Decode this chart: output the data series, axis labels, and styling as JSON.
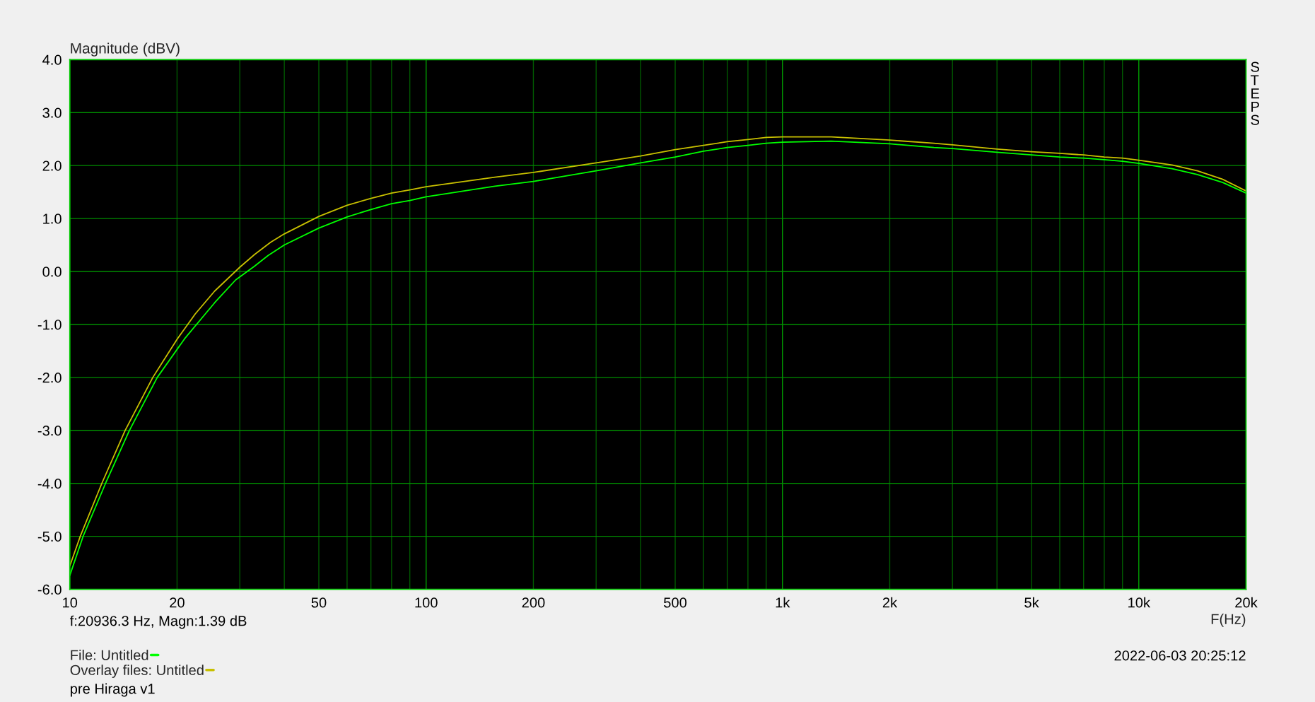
{
  "chart_data": {
    "type": "line",
    "ylabel": "Magnitude (dBV)",
    "xlabel": "F(Hz)",
    "log": "x",
    "xlim": [
      10,
      20000
    ],
    "ylim": [
      -6,
      4
    ],
    "xticks": [
      10,
      20,
      {
        "value": 30,
        "label": null
      },
      {
        "value": 40,
        "label": null
      },
      50,
      {
        "value": 60,
        "label": null
      },
      {
        "value": 70,
        "label": null
      },
      {
        "value": 80,
        "label": null
      },
      {
        "value": 90,
        "label": null
      },
      100,
      200,
      {
        "value": 300,
        "label": null
      },
      {
        "value": 400,
        "label": null
      },
      500,
      {
        "value": 600,
        "label": null
      },
      {
        "value": 700,
        "label": null
      },
      {
        "value": 800,
        "label": null
      },
      {
        "value": 900,
        "label": null
      },
      {
        "value": 1000,
        "label": "1k"
      },
      {
        "value": 2000,
        "label": "2k"
      },
      {
        "value": 3000,
        "label": null
      },
      {
        "value": 4000,
        "label": null
      },
      {
        "value": 5000,
        "label": "5k"
      },
      {
        "value": 6000,
        "label": null
      },
      {
        "value": 7000,
        "label": null
      },
      {
        "value": 8000,
        "label": null
      },
      {
        "value": 9000,
        "label": null
      },
      {
        "value": 10000,
        "label": "10k"
      },
      {
        "value": 20000,
        "label": "20k"
      }
    ],
    "yticks": [
      {
        "value": 4,
        "label": "4.0"
      },
      {
        "value": 3,
        "label": "3.0"
      },
      {
        "value": 2,
        "label": "2.0"
      },
      {
        "value": 1,
        "label": "1.0"
      },
      {
        "value": 0,
        "label": "0.0"
      },
      {
        "value": -1,
        "label": "-1.0"
      },
      {
        "value": -2,
        "label": "-2.0"
      },
      {
        "value": -3,
        "label": "-3.0"
      },
      {
        "value": -4,
        "label": "-4.0"
      },
      {
        "value": -5,
        "label": "-5.0"
      },
      {
        "value": -6,
        "label": "-6.0"
      }
    ],
    "grid": true,
    "legend": "bottom left",
    "series": [
      {
        "name": "File: Untitled",
        "color": "#00ff00",
        "x": [
          10,
          10.9,
          12.6,
          14.7,
          17.6,
          21,
          25.5,
          29.2,
          33,
          36,
          40,
          50,
          60,
          70,
          80,
          90,
          100,
          156,
          200,
          300,
          400,
          500,
          600,
          700,
          800,
          900,
          1000,
          1370,
          2000,
          2660,
          3000,
          4000,
          5000,
          6000,
          7000,
          8000,
          9000,
          10000,
          12400,
          14600,
          17200,
          20000
        ],
        "values": [
          -5.74,
          -5.0,
          -4.0,
          -3.0,
          -2.0,
          -1.27,
          -0.59,
          -0.16,
          0.1,
          0.3,
          0.5,
          0.82,
          1.03,
          1.17,
          1.28,
          1.34,
          1.41,
          1.61,
          1.7,
          1.9,
          2.05,
          2.16,
          2.27,
          2.34,
          2.38,
          2.42,
          2.44,
          2.46,
          2.41,
          2.34,
          2.32,
          2.25,
          2.2,
          2.16,
          2.14,
          2.11,
          2.08,
          2.04,
          1.94,
          1.83,
          1.68,
          1.48
        ]
      },
      {
        "name": "Overlay files: Untitled",
        "color": "#c8c000",
        "x": [
          10,
          10.7,
          12.3,
          14.3,
          17.1,
          20,
          22.5,
          25.5,
          30,
          33,
          36.6,
          40,
          50,
          60,
          70,
          80,
          90,
          100,
          156,
          200,
          300,
          400,
          500,
          600,
          700,
          800,
          900,
          1000,
          1370,
          2000,
          2660,
          3000,
          4000,
          5000,
          6000,
          7000,
          8000,
          9000,
          10000,
          12400,
          14600,
          17200,
          20000
        ],
        "values": [
          -5.56,
          -5.0,
          -4.0,
          -3.0,
          -2.0,
          -1.28,
          -0.8,
          -0.37,
          0.08,
          0.32,
          0.55,
          0.71,
          1.04,
          1.25,
          1.38,
          1.48,
          1.54,
          1.6,
          1.78,
          1.87,
          2.05,
          2.18,
          2.3,
          2.38,
          2.45,
          2.49,
          2.53,
          2.54,
          2.54,
          2.48,
          2.42,
          2.39,
          2.31,
          2.26,
          2.23,
          2.2,
          2.16,
          2.14,
          2.1,
          2.01,
          1.9,
          1.74,
          1.52
        ]
      }
    ],
    "annotations": [
      "f:20936.3 Hz, Magn:1.39 dB",
      "STEPS",
      "2022-06-03 20:25:12",
      "pre Hiraga v1"
    ]
  }
}
